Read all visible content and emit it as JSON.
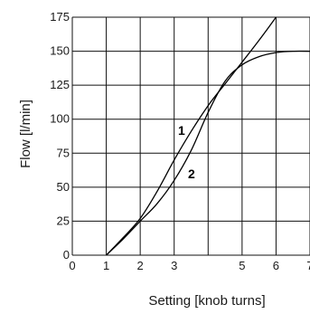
{
  "chart_data": {
    "type": "line",
    "xlabel": "Setting [knob turns]",
    "ylabel": "Flow [l/min]",
    "xlim": [
      0,
      7
    ],
    "ylim": [
      0,
      175
    ],
    "x_ticks": [
      "0",
      "1",
      "2",
      "3",
      "5",
      "6",
      "7"
    ],
    "x_tick_values": [
      0,
      1,
      2,
      3,
      5,
      6,
      7
    ],
    "x_grid_values": [
      0,
      1,
      2,
      3,
      4,
      5,
      6,
      7
    ],
    "y_ticks": [
      "0",
      "25",
      "50",
      "75",
      "100",
      "125",
      "150",
      "175"
    ],
    "y_tick_values": [
      0,
      25,
      50,
      75,
      100,
      125,
      150,
      175
    ],
    "grid": true,
    "series": [
      {
        "name": "1",
        "x": [
          1.0,
          1.5,
          2.0,
          2.5,
          3.0,
          3.5,
          4.0,
          4.5,
          5.0,
          5.5,
          6.0
        ],
        "y": [
          0,
          13,
          27,
          47,
          70,
          91,
          110,
          126,
          142,
          158,
          175
        ]
      },
      {
        "name": "2",
        "x": [
          1.0,
          1.5,
          2.0,
          2.5,
          3.0,
          3.5,
          4.0,
          4.5,
          5.0,
          5.5,
          6.0,
          6.5,
          7.0
        ],
        "y": [
          0,
          12,
          25,
          38,
          55,
          77,
          105,
          128,
          140,
          146,
          149,
          150,
          150
        ]
      }
    ]
  }
}
